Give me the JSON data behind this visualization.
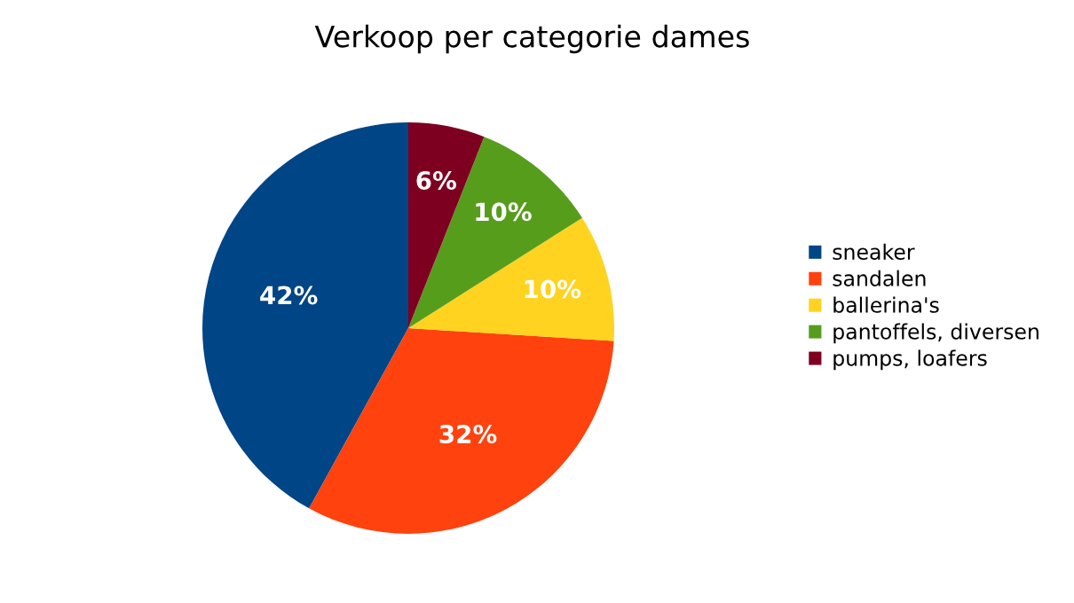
{
  "chart_data": {
    "type": "pie",
    "title": "Verkoop per categorie dames",
    "categories": [
      "sneaker",
      "sandalen",
      "ballerina's",
      "pantoffels, diversen",
      "pumps, loafers"
    ],
    "values": [
      42,
      32,
      10,
      10,
      6
    ],
    "colors": [
      "#004586",
      "#ff420e",
      "#ffd320",
      "#579d1c",
      "#7e0021"
    ],
    "value_labels": [
      "42%",
      "32%",
      "10%",
      "10%",
      "6%"
    ],
    "legend": "right"
  }
}
